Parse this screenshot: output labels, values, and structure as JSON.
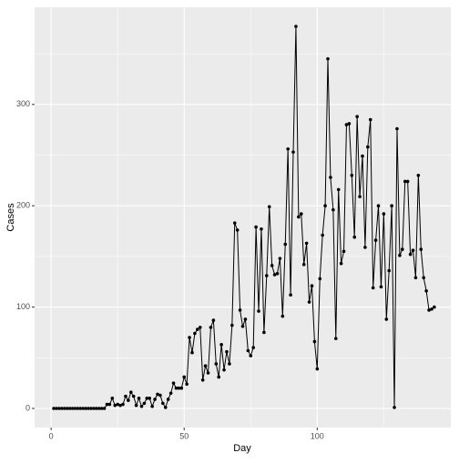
{
  "chart_data": {
    "type": "line",
    "x_label": "Day",
    "y_label": "Cases",
    "x": [
      1,
      2,
      3,
      4,
      5,
      6,
      7,
      8,
      9,
      10,
      11,
      12,
      13,
      14,
      15,
      16,
      17,
      18,
      19,
      20,
      21,
      22,
      23,
      24,
      25,
      26,
      27,
      28,
      29,
      30,
      31,
      32,
      33,
      34,
      35,
      36,
      37,
      38,
      39,
      40,
      41,
      42,
      43,
      44,
      45,
      46,
      47,
      48,
      49,
      50,
      51,
      52,
      53,
      54,
      55,
      56,
      57,
      58,
      59,
      60,
      61,
      62,
      63,
      64,
      65,
      66,
      67,
      68,
      69,
      70,
      71,
      72,
      73,
      74,
      75,
      76,
      77,
      78,
      79,
      80,
      81,
      82,
      83,
      84,
      85,
      86,
      87,
      88,
      89,
      90,
      91,
      92,
      93,
      94,
      95,
      96,
      97,
      98,
      99,
      100,
      101,
      102,
      103,
      104,
      105,
      106,
      107,
      108,
      109,
      110,
      111,
      112,
      113,
      114,
      115,
      116,
      117,
      118,
      119,
      120,
      121,
      122,
      123,
      124,
      125,
      126,
      127,
      128,
      129,
      130,
      131,
      132,
      133,
      134,
      135,
      136,
      137,
      138,
      139,
      140,
      141,
      142,
      143,
      144
    ],
    "series": [
      {
        "color": "#000000",
        "values": [
          0,
          0,
          0,
          0,
          0,
          0,
          0,
          0,
          0,
          0,
          0,
          0,
          0,
          0,
          0,
          0,
          0,
          0,
          0,
          0,
          4,
          4,
          10,
          3,
          4,
          3,
          4,
          12,
          8,
          16,
          12,
          3,
          10,
          2,
          5,
          10,
          10,
          2,
          9,
          14,
          13,
          5,
          1,
          9,
          15,
          25,
          20,
          20,
          20,
          31,
          24,
          70,
          55,
          74,
          78,
          80,
          28,
          42,
          35,
          80,
          87,
          44,
          31,
          63,
          38,
          56,
          44,
          82,
          183,
          176,
          97,
          81,
          88,
          57,
          52,
          60,
          179,
          96,
          177,
          75,
          131,
          199,
          141,
          132,
          133,
          148,
          91,
          162,
          256,
          112,
          253,
          377,
          189,
          192,
          142,
          163,
          105,
          121,
          66,
          39,
          128,
          171,
          200,
          345,
          228,
          196,
          69,
          216,
          143,
          155,
          280,
          281,
          230,
          169,
          288,
          209,
          249,
          159,
          258,
          285,
          119,
          166,
          200,
          120,
          192,
          88,
          136,
          200,
          1,
          276,
          151,
          157,
          224,
          224,
          152,
          156,
          129,
          230,
          157,
          129,
          116,
          97,
          98,
          100
        ]
      }
    ],
    "xlim": [
      -6.2,
      150.2
    ],
    "ylim": [
      -18.85,
      395.85
    ],
    "xticks": [
      0,
      50,
      100
    ],
    "yticks": [
      0,
      100,
      200,
      300
    ],
    "grid": true
  }
}
